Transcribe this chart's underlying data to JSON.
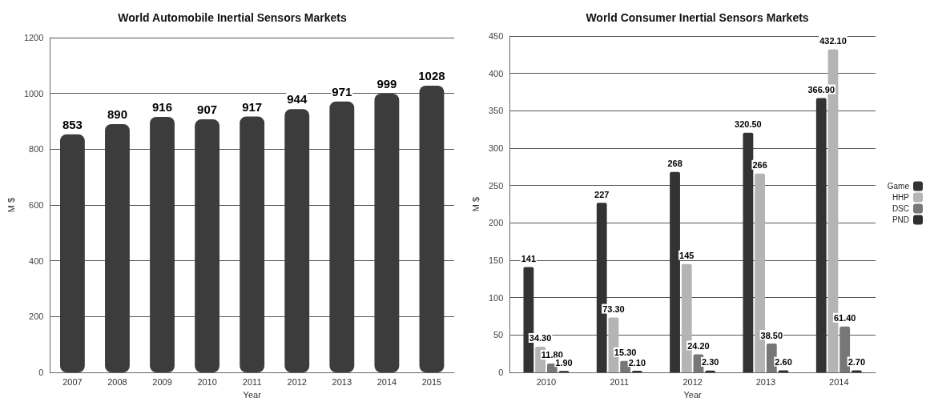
{
  "chart_data": [
    {
      "type": "bar",
      "title": "World Automobile Inertial Sensors Markets",
      "xlabel": "Year",
      "ylabel": "M $",
      "categories": [
        "2007",
        "2008",
        "2009",
        "2010",
        "2011",
        "2012",
        "2013",
        "2014",
        "2015"
      ],
      "values": [
        853,
        890,
        916,
        907,
        917,
        944,
        971,
        999,
        1028
      ],
      "color": "#3c3c3c",
      "ylim": [
        0,
        1200
      ],
      "yticks": [
        0,
        200,
        400,
        600,
        800,
        1000,
        1200
      ],
      "grid": "y",
      "data_labels": true
    },
    {
      "type": "bar",
      "title": "World Consumer Inertial Sensors Markets",
      "xlabel": "Year",
      "ylabel": "M $",
      "categories": [
        "2010",
        "2011",
        "2012",
        "2013",
        "2014"
      ],
      "series": [
        {
          "name": "Game",
          "color": "#333333",
          "values": [
            141,
            227,
            268,
            320.5,
            366.9
          ],
          "value_labels": [
            "141",
            "227",
            "268",
            "320.50",
            "366.90"
          ]
        },
        {
          "name": "HHP",
          "color": "#b4b4b4",
          "values": [
            34.3,
            73.3,
            145,
            266,
            432.1
          ],
          "value_labels": [
            "34.30",
            "73.30",
            "145",
            "266",
            "432.10"
          ]
        },
        {
          "name": "DSC",
          "color": "#777777",
          "values": [
            11.8,
            15.3,
            24.2,
            38.5,
            61.4
          ],
          "value_labels": [
            "11.80",
            "15.30",
            "24.20",
            "38.50",
            "61.40"
          ]
        },
        {
          "name": "PND",
          "color": "#2e2e2e",
          "values": [
            1.9,
            2.1,
            2.3,
            2.6,
            2.7
          ],
          "value_labels": [
            "1.90",
            "2.10",
            "2.30",
            "2.60",
            "2.70"
          ]
        }
      ],
      "ylim": [
        0,
        450
      ],
      "yticks": [
        0,
        50,
        100,
        150,
        200,
        250,
        300,
        350,
        400,
        450
      ],
      "grid": "y",
      "legend": "right"
    }
  ]
}
